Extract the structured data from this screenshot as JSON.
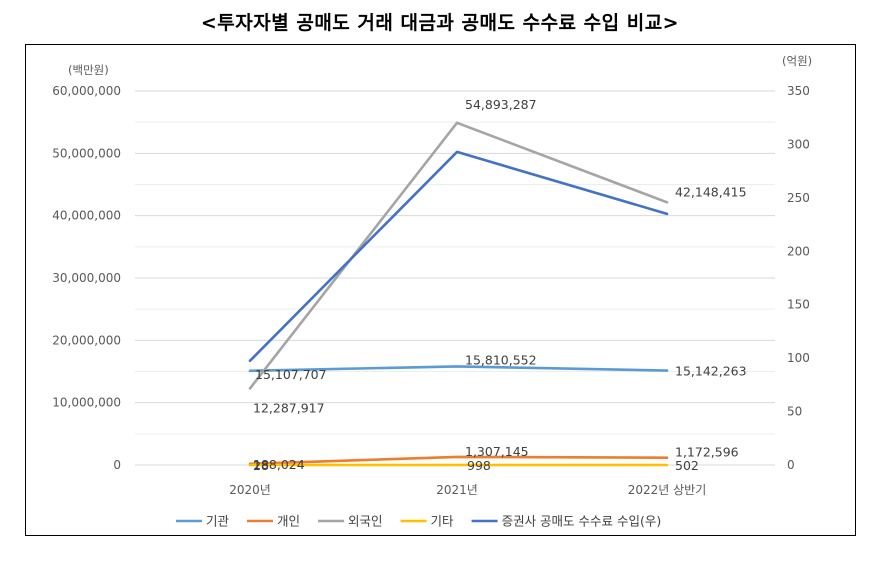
{
  "title": "<투자자별 공매도 거래 대금과 공매도 수수료 수입 비교>",
  "chart_data": {
    "type": "line",
    "left_axis_unit": "(백만원)",
    "right_axis_unit": "(억원)",
    "categories": [
      "2020년",
      "2021년",
      "2022년 상반기"
    ],
    "ylim": [
      0,
      60000000
    ],
    "y2lim": [
      0,
      350
    ],
    "left_ticks": [
      "60,000,000",
      "50,000,000",
      "40,000,000",
      "30,000,000",
      "20,000,000",
      "10,000,000",
      "0"
    ],
    "right_ticks": [
      "350",
      "300",
      "250",
      "200",
      "150",
      "100",
      "50",
      "0"
    ],
    "series": [
      {
        "name": "기관",
        "axis": "left",
        "color": "#5B9BD5",
        "values": [
          15107707,
          15810552,
          15142263
        ],
        "labels": [
          "15,107,707",
          "15,810,552",
          "15,142,263"
        ]
      },
      {
        "name": "개인",
        "axis": "left",
        "color": "#ED7D31",
        "values": [
          188024,
          1307145,
          1172596
        ],
        "labels": [
          "188,024",
          "1,307,145",
          "1,172,596"
        ]
      },
      {
        "name": "외국인",
        "axis": "left",
        "color": "#A5A5A5",
        "values": [
          12287917,
          54893287,
          42148415
        ],
        "labels": [
          "12,287,917",
          "54,893,287",
          "42,148,415"
        ]
      },
      {
        "name": "기타",
        "axis": "left",
        "color": "#FFC000",
        "values": [
          28,
          998,
          502
        ],
        "labels": [
          "28",
          "998",
          "502"
        ]
      },
      {
        "name": "증권사 공매도 수수료 수입(우)",
        "axis": "right",
        "color": "#4472C4",
        "values": [
          97.5,
          293,
          235
        ],
        "labels": [
          "",
          "",
          ""
        ]
      }
    ],
    "grid": true,
    "legend_position": "bottom"
  }
}
